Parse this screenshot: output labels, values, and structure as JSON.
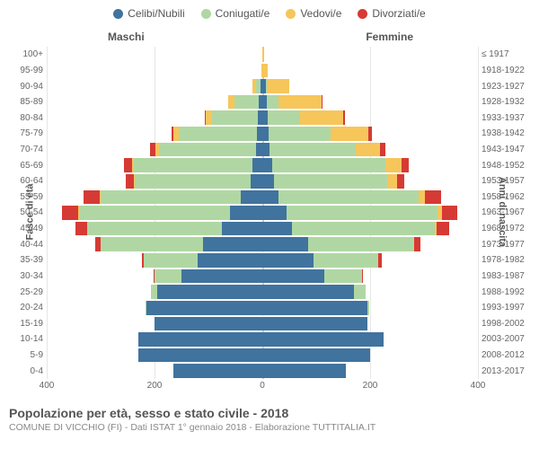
{
  "legend": [
    {
      "label": "Celibi/Nubili",
      "color": "#40739e"
    },
    {
      "label": "Coniugati/e",
      "color": "#b0d7a3"
    },
    {
      "label": "Vedovi/e",
      "color": "#f6c65b"
    },
    {
      "label": "Divorziati/e",
      "color": "#d63a34"
    }
  ],
  "headers": {
    "male": "Maschi",
    "female": "Femmine"
  },
  "axis_labels": {
    "left": "Fasce di età",
    "right": "Anni di nascita"
  },
  "x_ticks": [
    400,
    200,
    0,
    200,
    400
  ],
  "x_max": 400,
  "title": "Popolazione per età, sesso e stato civile - 2018",
  "subtitle": "COMUNE DI VICCHIO (FI) - Dati ISTAT 1° gennaio 2018 - Elaborazione TUTTITALIA.IT",
  "colors": {
    "celibi": "#40739e",
    "coniugati": "#b0d7a3",
    "vedovi": "#f6c65b",
    "divorziati": "#d63a34",
    "grid": "#e6e6e6",
    "center_dash": "#cccccc",
    "bg": "#ffffff"
  },
  "rows": [
    {
      "age": "100+",
      "year": "≤ 1917",
      "m": [
        0,
        0,
        0,
        0
      ],
      "f": [
        0,
        0,
        3,
        0
      ]
    },
    {
      "age": "95-99",
      "year": "1918-1922",
      "m": [
        0,
        0,
        2,
        0
      ],
      "f": [
        0,
        0,
        10,
        0
      ]
    },
    {
      "age": "90-94",
      "year": "1923-1927",
      "m": [
        4,
        8,
        6,
        0
      ],
      "f": [
        6,
        4,
        40,
        0
      ]
    },
    {
      "age": "85-89",
      "year": "1928-1932",
      "m": [
        6,
        45,
        12,
        0
      ],
      "f": [
        8,
        22,
        80,
        2
      ]
    },
    {
      "age": "80-84",
      "year": "1933-1937",
      "m": [
        8,
        85,
        12,
        2
      ],
      "f": [
        10,
        60,
        80,
        4
      ]
    },
    {
      "age": "75-79",
      "year": "1938-1942",
      "m": [
        10,
        145,
        10,
        4
      ],
      "f": [
        12,
        115,
        70,
        6
      ]
    },
    {
      "age": "70-74",
      "year": "1943-1947",
      "m": [
        12,
        180,
        6,
        10
      ],
      "f": [
        14,
        160,
        45,
        10
      ]
    },
    {
      "age": "65-69",
      "year": "1948-1952",
      "m": [
        18,
        220,
        4,
        14
      ],
      "f": [
        18,
        210,
        30,
        14
      ]
    },
    {
      "age": "60-64",
      "year": "1953-1957",
      "m": [
        22,
        215,
        2,
        14
      ],
      "f": [
        22,
        210,
        18,
        14
      ]
    },
    {
      "age": "55-59",
      "year": "1958-1962",
      "m": [
        40,
        260,
        2,
        30
      ],
      "f": [
        30,
        260,
        12,
        30
      ]
    },
    {
      "age": "50-54",
      "year": "1963-1967",
      "m": [
        60,
        280,
        2,
        30
      ],
      "f": [
        45,
        280,
        8,
        28
      ]
    },
    {
      "age": "45-49",
      "year": "1968-1972",
      "m": [
        75,
        250,
        0,
        22
      ],
      "f": [
        55,
        265,
        4,
        22
      ]
    },
    {
      "age": "40-44",
      "year": "1973-1977",
      "m": [
        110,
        190,
        0,
        10
      ],
      "f": [
        85,
        195,
        2,
        12
      ]
    },
    {
      "age": "35-39",
      "year": "1978-1982",
      "m": [
        120,
        100,
        0,
        4
      ],
      "f": [
        95,
        120,
        0,
        6
      ]
    },
    {
      "age": "30-34",
      "year": "1983-1987",
      "m": [
        150,
        50,
        0,
        2
      ],
      "f": [
        115,
        70,
        0,
        2
      ]
    },
    {
      "age": "25-29",
      "year": "1988-1992",
      "m": [
        195,
        12,
        0,
        0
      ],
      "f": [
        170,
        22,
        0,
        0
      ]
    },
    {
      "age": "20-24",
      "year": "1993-1997",
      "m": [
        215,
        2,
        0,
        0
      ],
      "f": [
        195,
        4,
        0,
        0
      ]
    },
    {
      "age": "15-19",
      "year": "1998-2002",
      "m": [
        200,
        0,
        0,
        0
      ],
      "f": [
        195,
        0,
        0,
        0
      ]
    },
    {
      "age": "10-14",
      "year": "2003-2007",
      "m": [
        230,
        0,
        0,
        0
      ],
      "f": [
        225,
        0,
        0,
        0
      ]
    },
    {
      "age": "5-9",
      "year": "2008-2012",
      "m": [
        230,
        0,
        0,
        0
      ],
      "f": [
        200,
        0,
        0,
        0
      ]
    },
    {
      "age": "0-4",
      "year": "2013-2017",
      "m": [
        165,
        0,
        0,
        0
      ],
      "f": [
        155,
        0,
        0,
        0
      ]
    }
  ]
}
